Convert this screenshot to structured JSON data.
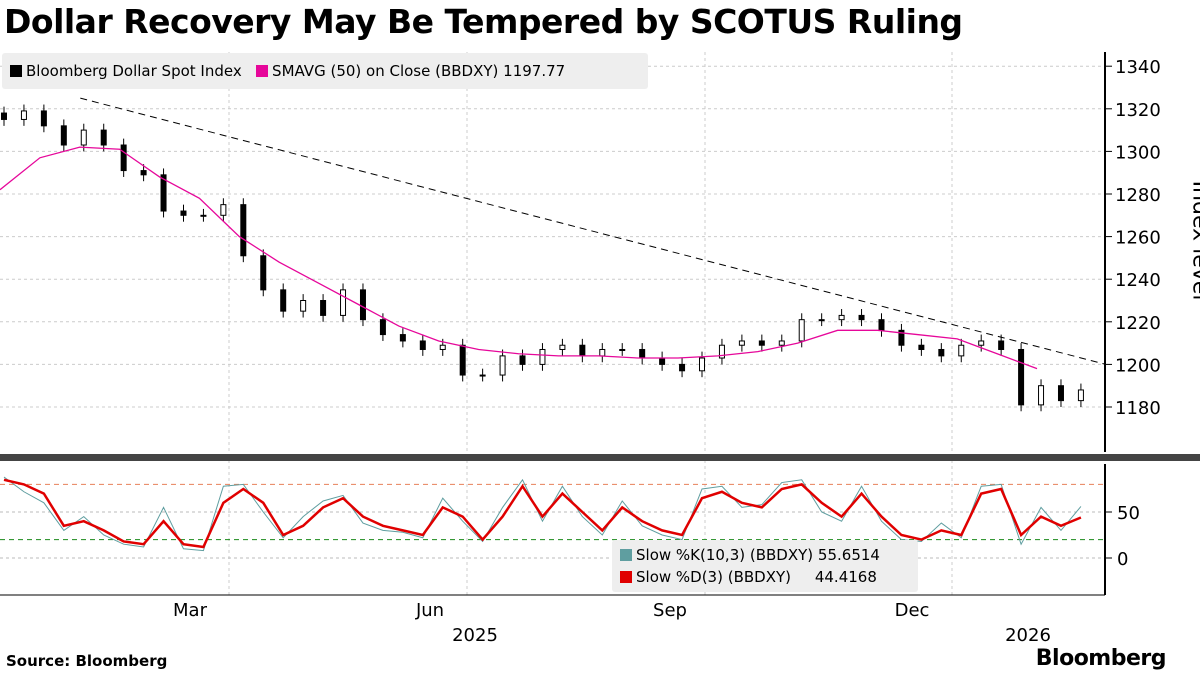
{
  "title": "Dollar Recovery May Be Tempered by SCOTUS Ruling",
  "source": "Source: Bloomberg",
  "brand": "Bloomberg",
  "chart_data": [
    {
      "type": "candlestick",
      "ylabel": "Index level",
      "ylim": [
        1160,
        1345
      ],
      "yticks": [
        1180,
        1200,
        1220,
        1240,
        1260,
        1280,
        1300,
        1320,
        1340
      ],
      "xtick_labels": [
        "Mar",
        "Jun",
        "Sep",
        "Dec"
      ],
      "year_labels": [
        "2025",
        "2026"
      ],
      "legend": [
        {
          "name": "Bloomberg Dollar Spot Index",
          "color": "#000000"
        },
        {
          "name": "SMAVG (50)  on Close (BBDXY) 1197.77",
          "color": "#e6079a"
        }
      ],
      "price": {
        "start": "2024-12-03",
        "step_days": 7.7,
        "close": [
          1315,
          1319,
          1312,
          1303,
          1310,
          1303,
          1291,
          1289,
          1272,
          1270,
          1270,
          1275,
          1251,
          1235,
          1225,
          1230,
          1223,
          1235,
          1221,
          1214,
          1211,
          1207,
          1209,
          1195,
          1195,
          1204,
          1200,
          1207,
          1209,
          1204,
          1207,
          1207,
          1203,
          1200,
          1197,
          1203,
          1209,
          1211,
          1209,
          1211,
          1221,
          1221,
          1223,
          1221,
          1216,
          1209,
          1207,
          1204,
          1209,
          1211,
          1207,
          1181,
          1190,
          1183,
          1188
        ]
      },
      "sma": {
        "start": "2024-12-03",
        "step_days": 15.4,
        "values": [
          1282,
          1297,
          1302,
          1301,
          1288,
          1278,
          1260,
          1248,
          1238,
          1228,
          1218,
          1211,
          1207,
          1205,
          1204,
          1204,
          1203,
          1203,
          1204,
          1206,
          1210,
          1216,
          1216,
          1214,
          1212,
          1205,
          1198
        ]
      },
      "trendline": [
        {
          "date": "2025-01-03",
          "value": 1325
        },
        {
          "date": "2026-02-03",
          "value": 1200
        }
      ]
    },
    {
      "type": "line",
      "ylim": [
        -40,
        100
      ],
      "yticks": [
        0,
        50
      ],
      "reference_lines": [
        80,
        20
      ],
      "series": [
        {
          "name": "Slow %K(10,3) (BBDXY) 55.6514",
          "label": "Slow %K(10,3) (BBDXY)",
          "last": "55.6514",
          "color": "#5f9ea0",
          "start": "2024-12-03",
          "step_days": 7.7,
          "values": [
            88,
            72,
            60,
            30,
            45,
            25,
            15,
            12,
            55,
            10,
            8,
            78,
            80,
            50,
            22,
            45,
            62,
            68,
            38,
            30,
            28,
            22,
            65,
            40,
            18,
            55,
            85,
            40,
            78,
            45,
            25,
            62,
            35,
            25,
            20,
            75,
            78,
            55,
            58,
            82,
            85,
            50,
            40,
            78,
            40,
            20,
            18,
            38,
            22,
            78,
            80,
            15,
            55,
            30,
            56
          ]
        },
        {
          "name": "Slow %D(3) (BBDXY) 44.4168",
          "label": "Slow %D(3) (BBDXY)",
          "last": "44.4168",
          "color": "#e00000",
          "start": "2024-12-03",
          "step_days": 7.7,
          "values": [
            85,
            80,
            70,
            35,
            40,
            30,
            18,
            15,
            40,
            15,
            12,
            60,
            75,
            60,
            25,
            35,
            55,
            65,
            45,
            35,
            30,
            25,
            55,
            45,
            20,
            45,
            78,
            45,
            70,
            50,
            30,
            55,
            40,
            30,
            25,
            65,
            72,
            60,
            55,
            75,
            80,
            60,
            45,
            70,
            45,
            25,
            20,
            30,
            25,
            70,
            75,
            25,
            45,
            35,
            44
          ]
        }
      ]
    }
  ]
}
